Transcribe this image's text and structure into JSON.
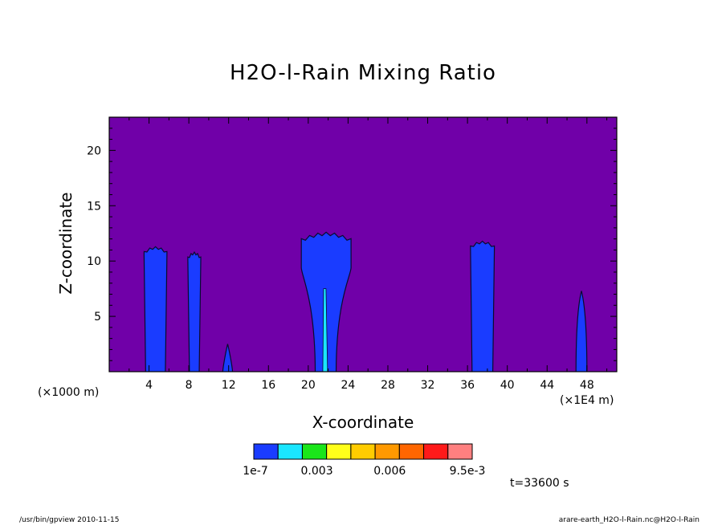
{
  "chart_data": {
    "type": "contour",
    "title": "H2O-l-Rain Mixing Ratio",
    "xlabel": "X-coordinate",
    "ylabel": "Z-coordinate",
    "x_unit_label": "(×1000 m)",
    "x_scale_label": "(×1E4 m)",
    "xlim": [
      0,
      51
    ],
    "ylim": [
      0,
      23
    ],
    "x_ticks": [
      4,
      8,
      12,
      16,
      20,
      24,
      28,
      32,
      36,
      40,
      44,
      48
    ],
    "y_ticks": [
      5,
      10,
      15,
      20
    ],
    "background_color": "#7000a8",
    "cells": [
      {
        "x_min": 3.5,
        "x_max": 5.8,
        "z_top": 11.3
      },
      {
        "x_min": 7.9,
        "x_max": 9.2,
        "z_top": 10.8
      },
      {
        "x_min": 11.4,
        "x_max": 12.4,
        "z_top": 2.5
      },
      {
        "x_min": 19.3,
        "x_max": 24.3,
        "z_top": 12.6
      },
      {
        "x_min": 36.3,
        "x_max": 38.7,
        "z_top": 11.8
      },
      {
        "x_min": 46.9,
        "x_max": 48.0,
        "z_top": 7.3
      }
    ],
    "colorbar": {
      "tick_labels": [
        "1e-7",
        "0.003",
        "0.006",
        "9.5e-3"
      ],
      "colors": [
        "#1a3cff",
        "#1ae6ff",
        "#1ae61a",
        "#ffff1a",
        "#ffcc00",
        "#ff9900",
        "#ff6600",
        "#ff1a1a",
        "#ff8080"
      ]
    },
    "time_label": "t=33600 s"
  },
  "footer": {
    "left": "/usr/bin/gpview   2010-11-15",
    "right": "arare-earth_H2O-l-Rain.nc@H2O-l-Rain"
  }
}
